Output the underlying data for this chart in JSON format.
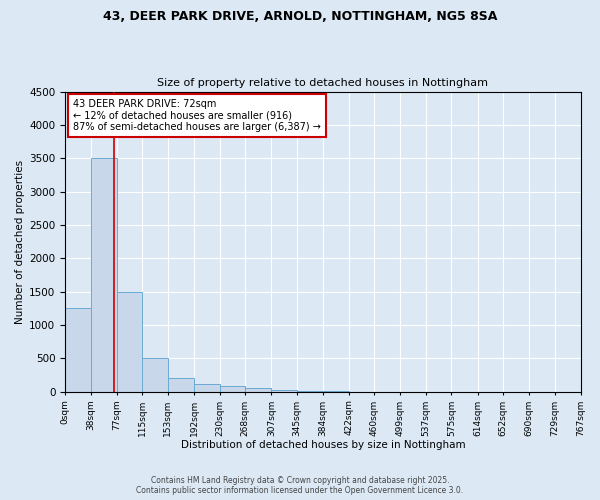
{
  "title": "43, DEER PARK DRIVE, ARNOLD, NOTTINGHAM, NG5 8SA",
  "subtitle": "Size of property relative to detached houses in Nottingham",
  "xlabel": "Distribution of detached houses by size in Nottingham",
  "ylabel": "Number of detached properties",
  "bar_color": "#c8d8ea",
  "bar_edge_color": "#6aaad4",
  "background_color": "#dce9f5",
  "grid_color": "#ffffff",
  "bin_edges": [
    0,
    38,
    77,
    115,
    153,
    192,
    230,
    268,
    307,
    345,
    384,
    422,
    460,
    499,
    537,
    575,
    614,
    652,
    690,
    729,
    767
  ],
  "bar_heights": [
    1250,
    3500,
    1500,
    500,
    200,
    120,
    80,
    50,
    20,
    5,
    5,
    0,
    0,
    0,
    0,
    0,
    0,
    0,
    0,
    0
  ],
  "property_size": 72,
  "annotation_line1": "43 DEER PARK DRIVE: 72sqm",
  "annotation_line2": "← 12% of detached houses are smaller (916)",
  "annotation_line3": "87% of semi-detached houses are larger (6,387) →",
  "annotation_box_color": "#ffffff",
  "annotation_box_edge_color": "#cc0000",
  "vline_color": "#cc0000",
  "ylim": [
    0,
    4500
  ],
  "yticks": [
    0,
    500,
    1000,
    1500,
    2000,
    2500,
    3000,
    3500,
    4000,
    4500
  ],
  "footer_line1": "Contains HM Land Registry data © Crown copyright and database right 2025.",
  "footer_line2": "Contains public sector information licensed under the Open Government Licence 3.0."
}
